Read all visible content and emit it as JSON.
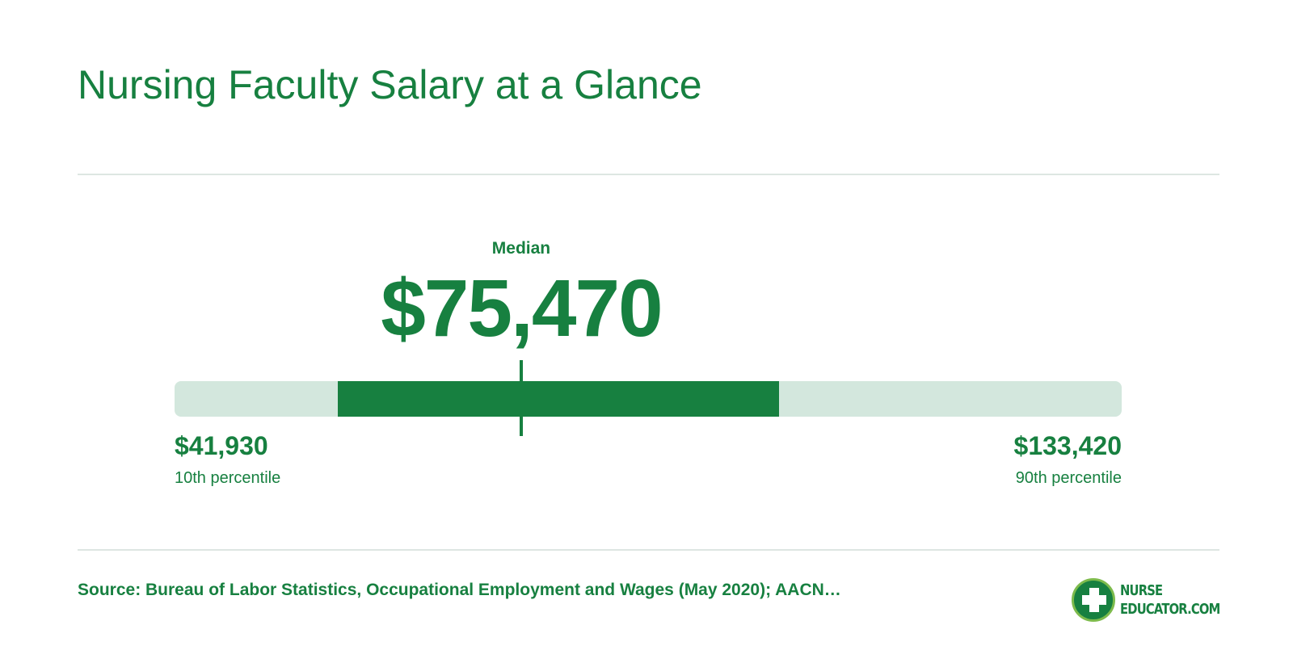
{
  "title": "Nursing Faculty Salary at a Glance",
  "colors": {
    "accent": "#178040",
    "track": "#d3e7dd",
    "divider": "#dde6e2",
    "logo_ring": "#7dbb4c"
  },
  "chart_data": {
    "type": "bar",
    "median": {
      "label": "Median",
      "value": 75470,
      "display": "$75,470"
    },
    "low": {
      "label": "10th percentile",
      "value": 41930,
      "display": "$41,930"
    },
    "high": {
      "label": "90th percentile",
      "value": 133420,
      "display": "$133,420"
    },
    "range_highlight": {
      "start_fraction": 0.172,
      "end_fraction": 0.638
    },
    "median_fraction": 0.366
  },
  "source": "Source: Bureau of Labor Statistics, Occupational Employment and Wages (May 2020); AACN…",
  "logo": {
    "line1": "NURSE",
    "line2": "EDUCATOR.COM",
    "icon": "medical-cross-icon"
  }
}
